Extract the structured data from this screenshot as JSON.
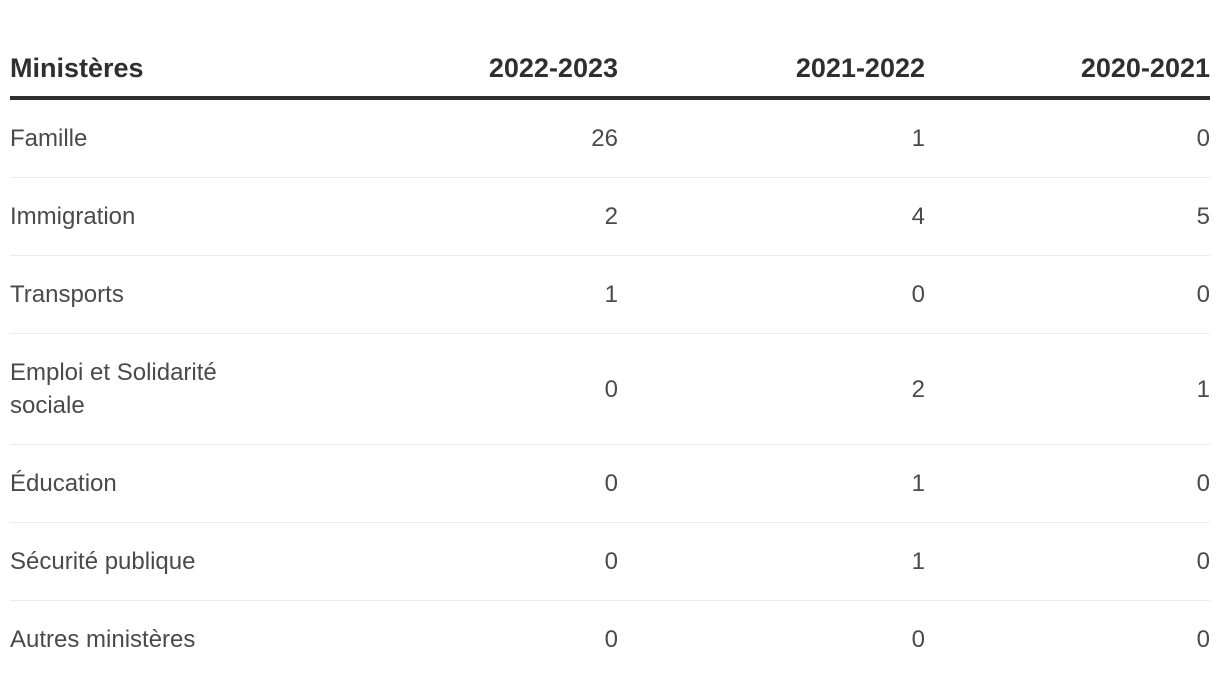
{
  "table": {
    "columns": [
      "Ministères",
      "2022-2023",
      "2021-2022",
      "2020-2021"
    ],
    "rows": [
      {
        "label": "Famille",
        "values": [
          "26",
          "1",
          "0"
        ]
      },
      {
        "label": "Immigration",
        "values": [
          "2",
          "4",
          "5"
        ]
      },
      {
        "label": "Transports",
        "values": [
          "1",
          "0",
          "0"
        ]
      },
      {
        "label": "Emploi et Solidarité sociale",
        "values": [
          "0",
          "2",
          "1"
        ]
      },
      {
        "label": "Éducation",
        "values": [
          "0",
          "1",
          "0"
        ]
      },
      {
        "label": "Sécurité publique",
        "values": [
          "0",
          "1",
          "0"
        ]
      },
      {
        "label": "Autres ministères",
        "values": [
          "0",
          "0",
          "0"
        ]
      }
    ]
  },
  "chart_data": {
    "type": "table",
    "columns": [
      "Ministères",
      "2022-2023",
      "2021-2022",
      "2020-2021"
    ],
    "rows": [
      [
        "Famille",
        26,
        1,
        0
      ],
      [
        "Immigration",
        2,
        4,
        5
      ],
      [
        "Transports",
        1,
        0,
        0
      ],
      [
        "Emploi et Solidarité sociale",
        0,
        2,
        1
      ],
      [
        "Éducation",
        0,
        1,
        0
      ],
      [
        "Sécurité publique",
        0,
        1,
        0
      ],
      [
        "Autres ministères",
        0,
        0,
        0
      ]
    ],
    "layout_hints": {
      "first_column_align": "left",
      "value_columns_align": "right",
      "header_rule": true,
      "row_separators": true
    }
  },
  "colors": {
    "header_text": "#2f2f2f",
    "header_rule": "#2f2f2f",
    "body_text": "#4a4a4a",
    "row_separator": "#ececec",
    "background": "#ffffff"
  }
}
